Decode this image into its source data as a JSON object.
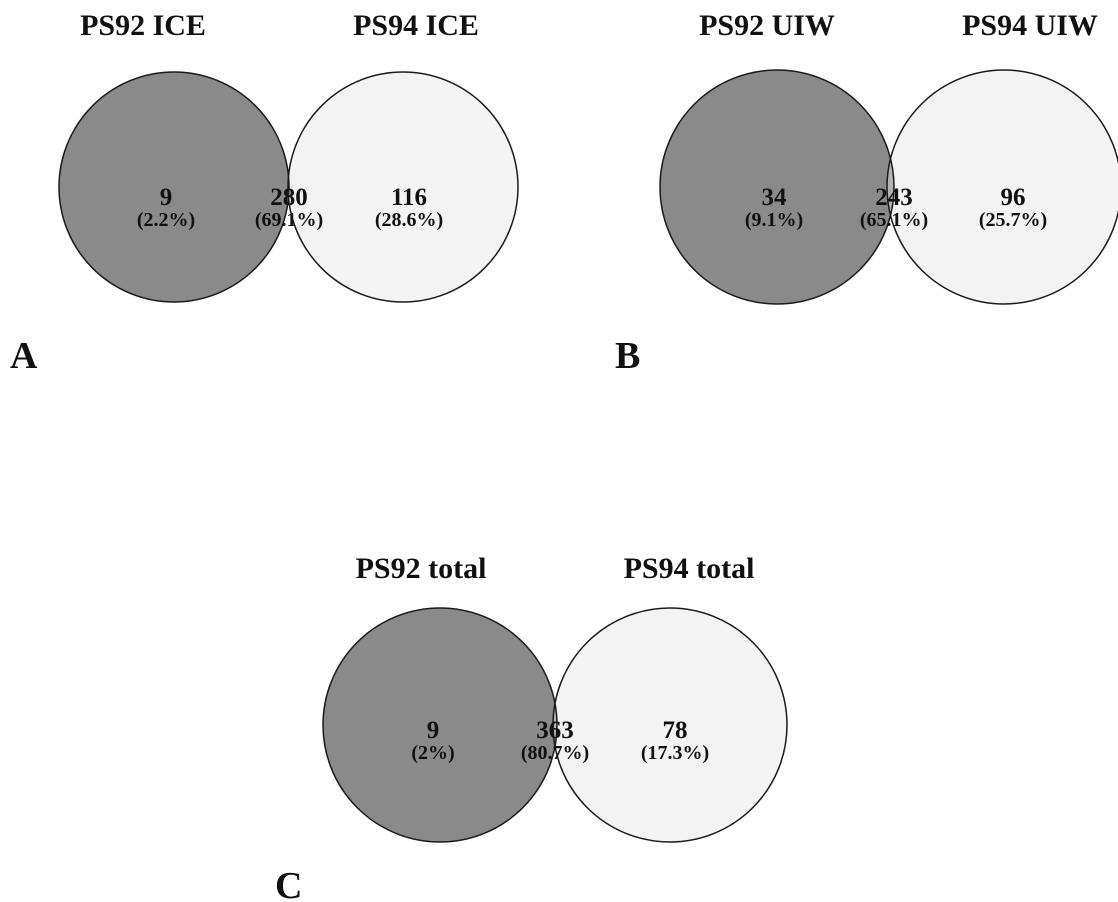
{
  "colors": {
    "left_only": "#8a8a8a",
    "overlap": "#b3b3b3",
    "right_only": "#f3f3f3",
    "stroke": "#1a1a1a"
  },
  "panels": [
    {
      "label": "A",
      "left_title": "PS92 ICE",
      "right_title": "PS94 ICE",
      "left_only": {
        "count": "9",
        "percent": "(2.2%)"
      },
      "overlap": {
        "count": "280",
        "percent": "(69.1%)"
      },
      "right_only": {
        "count": "116",
        "percent": "(28.6%)"
      }
    },
    {
      "label": "B",
      "left_title": "PS92 UIW",
      "right_title": "PS94 UIW",
      "left_only": {
        "count": "34",
        "percent": "(9.1%)"
      },
      "overlap": {
        "count": "243",
        "percent": "(65.1%)"
      },
      "right_only": {
        "count": "96",
        "percent": "(25.7%)"
      }
    },
    {
      "label": "C",
      "left_title": "PS92 total",
      "right_title": "PS94 total",
      "left_only": {
        "count": "9",
        "percent": "(2%)"
      },
      "overlap": {
        "count": "363",
        "percent": "(80.7%)"
      },
      "right_only": {
        "count": "78",
        "percent": "(17.3%)"
      }
    }
  ]
}
